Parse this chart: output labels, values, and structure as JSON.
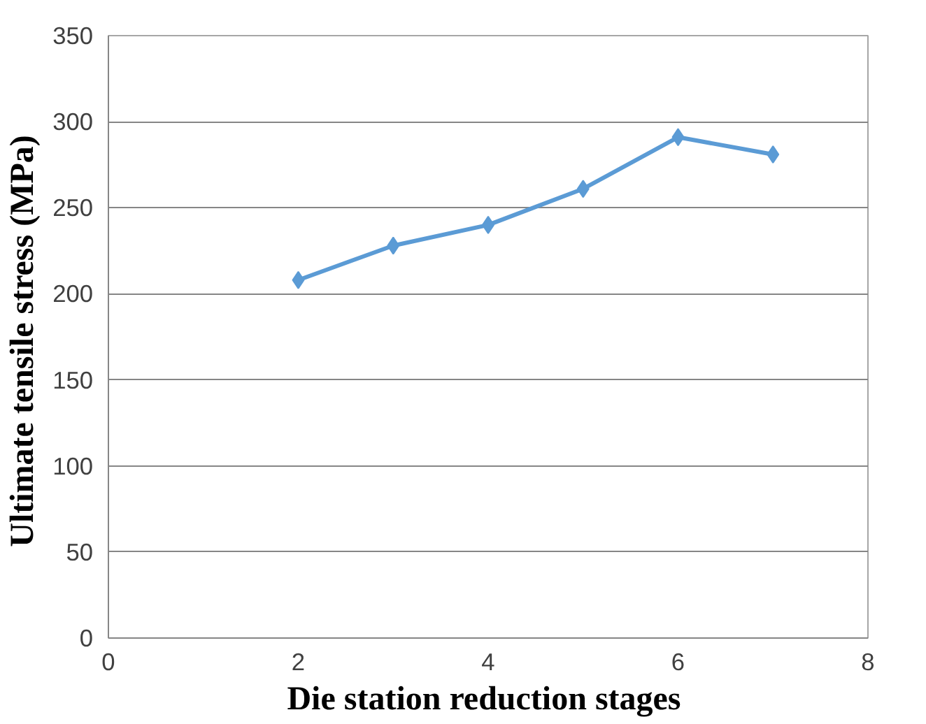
{
  "chart_data": {
    "type": "line",
    "xlabel": "Die station reduction  stages",
    "ylabel": "Ultimate  tensile stress (MPa)",
    "x": [
      2,
      3,
      4,
      5,
      6,
      7
    ],
    "series": [
      {
        "color": "#5b9bd5",
        "values": [
          208,
          228,
          240,
          261,
          291,
          281
        ]
      }
    ],
    "xlim": [
      0,
      8
    ],
    "xticks": [
      0,
      2,
      4,
      6,
      8
    ],
    "ylim": [
      0,
      350
    ],
    "yticks": [
      0,
      50,
      100,
      150,
      200,
      250,
      300,
      350
    ],
    "grid": "y",
    "marker": "diamond",
    "line_style": "solid"
  }
}
